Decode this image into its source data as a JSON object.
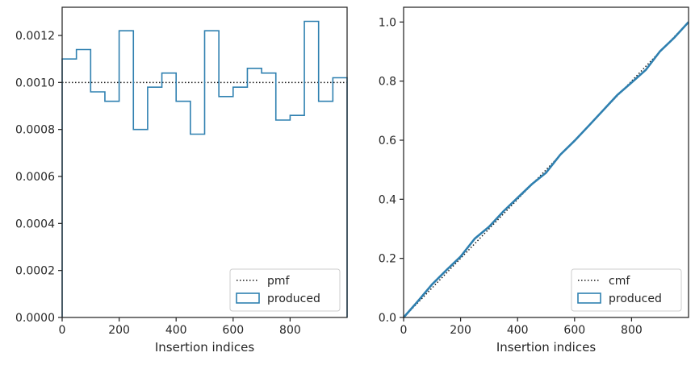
{
  "colors": {
    "produced": "#2f80b0",
    "reference": "#1a1a1a",
    "axes": "#262626"
  },
  "chart_data": [
    {
      "type": "step",
      "xlabel": "Insertion indices",
      "ylabel": "",
      "xlim": [
        0,
        1000
      ],
      "ylim": [
        0,
        0.00132
      ],
      "xticks": [
        0,
        200,
        400,
        600,
        800
      ],
      "xtick_labels": [
        "0",
        "200",
        "400",
        "600",
        "800"
      ],
      "yticks": [
        0,
        0.0002,
        0.0004,
        0.0006,
        0.0008,
        0.001,
        0.0012
      ],
      "ytick_labels": [
        "0.0000",
        "0.0002",
        "0.0004",
        "0.0006",
        "0.0008",
        "0.0010",
        "0.0012"
      ],
      "legend_position": "lower-right",
      "grid": false,
      "series": [
        {
          "name": "pmf",
          "style": "dotted",
          "x": [
            0,
            1000
          ],
          "y": [
            0.001,
            0.001
          ]
        },
        {
          "name": "produced",
          "style": "step-histogram",
          "bin_edges": [
            0,
            50,
            100,
            150,
            200,
            250,
            300,
            350,
            400,
            450,
            500,
            550,
            600,
            650,
            700,
            750,
            800,
            850,
            900,
            950,
            1000
          ],
          "values": [
            0.0011,
            0.00114,
            0.00096,
            0.00092,
            0.00122,
            0.0008,
            0.00098,
            0.00104,
            0.00092,
            0.00078,
            0.00122,
            0.00094,
            0.00098,
            0.00106,
            0.00104,
            0.00084,
            0.00086,
            0.00126,
            0.00092,
            0.00102
          ]
        }
      ]
    },
    {
      "type": "line",
      "xlabel": "Insertion indices",
      "ylabel": "",
      "xlim": [
        0,
        1000
      ],
      "ylim": [
        0,
        1.05
      ],
      "xticks": [
        0,
        200,
        400,
        600,
        800
      ],
      "xtick_labels": [
        "0",
        "200",
        "400",
        "600",
        "800"
      ],
      "yticks": [
        0,
        0.2,
        0.4,
        0.6,
        0.8,
        1.0
      ],
      "ytick_labels": [
        "0.0",
        "0.2",
        "0.4",
        "0.6",
        "0.8",
        "1.0"
      ],
      "legend_position": "lower-right",
      "grid": false,
      "series": [
        {
          "name": "cmf",
          "style": "dotted",
          "x": [
            0,
            1000
          ],
          "y": [
            0,
            1
          ]
        },
        {
          "name": "produced",
          "style": "cumulative",
          "x": [
            0,
            50,
            100,
            150,
            200,
            250,
            300,
            350,
            400,
            450,
            500,
            550,
            600,
            650,
            700,
            750,
            800,
            850,
            900,
            950,
            1000
          ],
          "y": [
            0,
            0.055,
            0.112,
            0.16,
            0.206,
            0.267,
            0.307,
            0.359,
            0.405,
            0.451,
            0.49,
            0.551,
            0.598,
            0.649,
            0.701,
            0.753,
            0.795,
            0.838,
            0.901,
            0.947,
            1.0
          ]
        }
      ]
    }
  ]
}
